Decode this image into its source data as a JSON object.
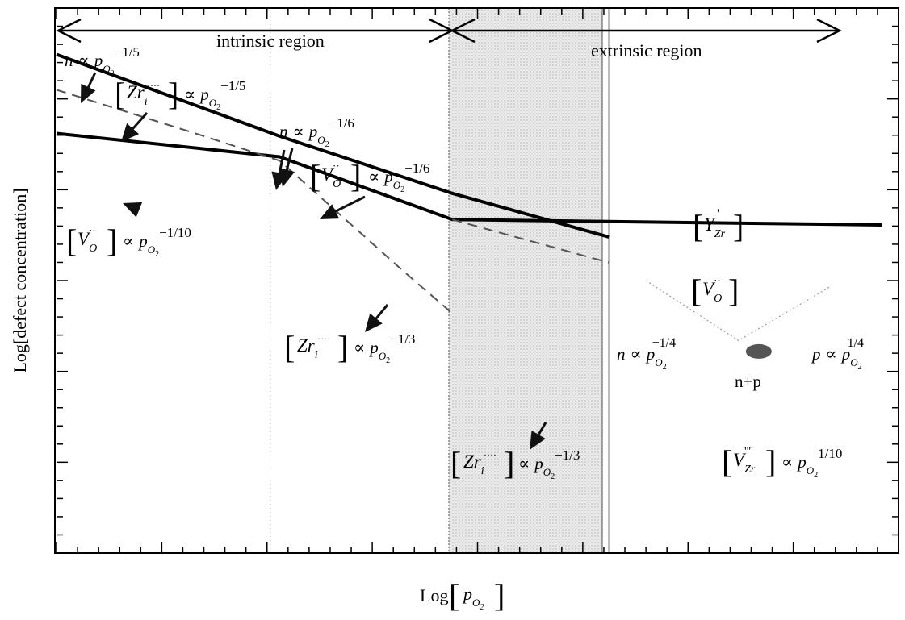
{
  "chart_data": {
    "type": "line",
    "xlabel": "Log",
    "xlabel_var": "p",
    "xlabel_sub": "O",
    "xlabel_subsub": "2",
    "ylabel": "Log[defect concentration]",
    "regions": {
      "intrinsic": "intrinsic region",
      "extrinsic": "extrinsic region"
    },
    "xlim": [
      0,
      1
    ],
    "ylim": [
      0,
      1
    ],
    "grid": false,
    "series": [
      {
        "points": [
          [
            0.0,
            0.915
          ],
          [
            0.265,
            0.765
          ],
          [
            0.47,
            0.66
          ],
          [
            0.656,
            0.58
          ]
        ],
        "style": "thick"
      },
      {
        "points": [
          [
            0.0,
            0.77
          ],
          [
            0.265,
            0.727
          ],
          [
            0.47,
            0.612
          ],
          [
            0.98,
            0.602
          ]
        ],
        "style": "thick"
      },
      {
        "points": [
          [
            0.0,
            0.85
          ],
          [
            0.165,
            0.77
          ],
          [
            0.265,
            0.72
          ],
          [
            0.41,
            0.52
          ],
          [
            0.47,
            0.44
          ]
        ],
        "style": "thin"
      },
      {
        "points": [
          [
            0.47,
            0.612
          ],
          [
            0.656,
            0.533
          ]
        ],
        "style": "thin"
      },
      {
        "points": [
          [
            0.7,
            0.5
          ],
          [
            0.81,
            0.39
          ],
          [
            0.92,
            0.49
          ]
        ],
        "style": "faint"
      }
    ],
    "annotations": [
      {
        "id": "n15",
        "var": "n",
        "sym": "∝",
        "p": "p",
        "sub": "O",
        "subsub": "2",
        "exp": "−1/5"
      },
      {
        "id": "zr15",
        "var": "Zr",
        "sub": "i",
        "dots": "····",
        "sym": "∝",
        "p": "p",
        "psub": "O",
        "psubsub": "2",
        "exp": "−1/5"
      },
      {
        "id": "n16",
        "var": "n",
        "sym": "∝",
        "p": "p",
        "sub": "O",
        "subsub": "2",
        "exp": "−1/6"
      },
      {
        "id": "vo16",
        "var": "V",
        "sub": "O",
        "dots": "··",
        "sym": "∝",
        "p": "p",
        "psub": "O",
        "psubsub": "2",
        "exp": "−1/6"
      },
      {
        "id": "vo110",
        "var": "V",
        "sub": "O",
        "dots": "··",
        "sym": "∝",
        "p": "p",
        "psub": "O",
        "psubsub": "2",
        "exp": "−1/10"
      },
      {
        "id": "yzr",
        "var": "Y",
        "sub": "Zr",
        "dots": "'"
      },
      {
        "id": "vo",
        "var": "V",
        "sub": "O",
        "dots": "··"
      },
      {
        "id": "zr13a",
        "var": "Zr",
        "sub": "i",
        "dots": "····",
        "sym": "∝",
        "p": "p",
        "psub": "O",
        "psubsub": "2",
        "exp": "−1/3"
      },
      {
        "id": "zr13b",
        "var": "Zr",
        "sub": "i",
        "dots": "····",
        "sym": "∝",
        "p": "p",
        "psub": "O",
        "psubsub": "2",
        "exp": "−1/3"
      },
      {
        "id": "n14",
        "var": "n",
        "sym": "∝",
        "p": "p",
        "sub": "O",
        "subsub": "2",
        "exp": "−1/4"
      },
      {
        "id": "p14",
        "var": "p",
        "sym": "∝",
        "p": "p",
        "sub": "O",
        "subsub": "2",
        "exp": "1/4"
      },
      {
        "id": "np",
        "text": "n+p"
      },
      {
        "id": "vzr",
        "var": "V",
        "sub": "Zr",
        "dots": "''''",
        "sym": "∝",
        "p": "p",
        "psub": "O",
        "psubsub": "2",
        "exp": "1/10"
      }
    ]
  }
}
